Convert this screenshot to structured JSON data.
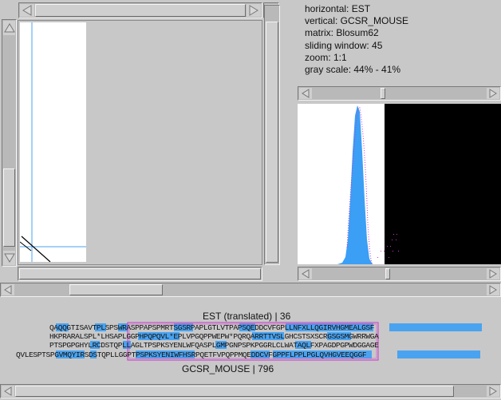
{
  "info": {
    "horizontal": "horizontal: EST",
    "vertical": "vertical: GCSR_MOUSE",
    "matrix": "matrix: Blosum62",
    "window": "sliding window: 45",
    "zoom": "zoom: 1:1",
    "grayscale": "gray scale: 44% - 41%"
  },
  "alignment": {
    "top_label": "EST (translated) | 36",
    "bottom_label": "GCSR_MOUSE | 796",
    "frame1": "QAQQGTISAVTPLSPSWRASPPAPSPMRTSGSRPAPLGTLVTPAPSQEDDCVFGPLLNFXLLQGIRVHGMEALGSF",
    "frame2": "HKPRARALSPL*LHSAPLGGPHPQPQVL*EPLVPGQPPWEPW*PQRQARRTTVSLGHCSTSXSCRGSGSMGWRRWGA",
    "frame3": "PTSPGPGHYLRCDSTQPLLAGLTPSPKSYENLWFQASPLGMPGNPSPKPGGRLCLWATAQLFXPAGDPGPWDGGAGE",
    "protein": "QVLESPTSPGVMQYIRSDSTQPLLGGPTPSPKSYENIWFHSRPQETFVPQPPMQEDDCVFGPPFLPPLPGLQVHGVEEQGGF"
  },
  "colors": {
    "highlight": "#4aa3f0",
    "box": "#cc33cc",
    "hist_fill": "#3a9ff5",
    "dotted": "#cc33cc"
  },
  "icons": {
    "left": "left-arrow-icon",
    "right": "right-arrow-icon",
    "up": "up-arrow-icon",
    "down": "down-arrow-icon"
  }
}
